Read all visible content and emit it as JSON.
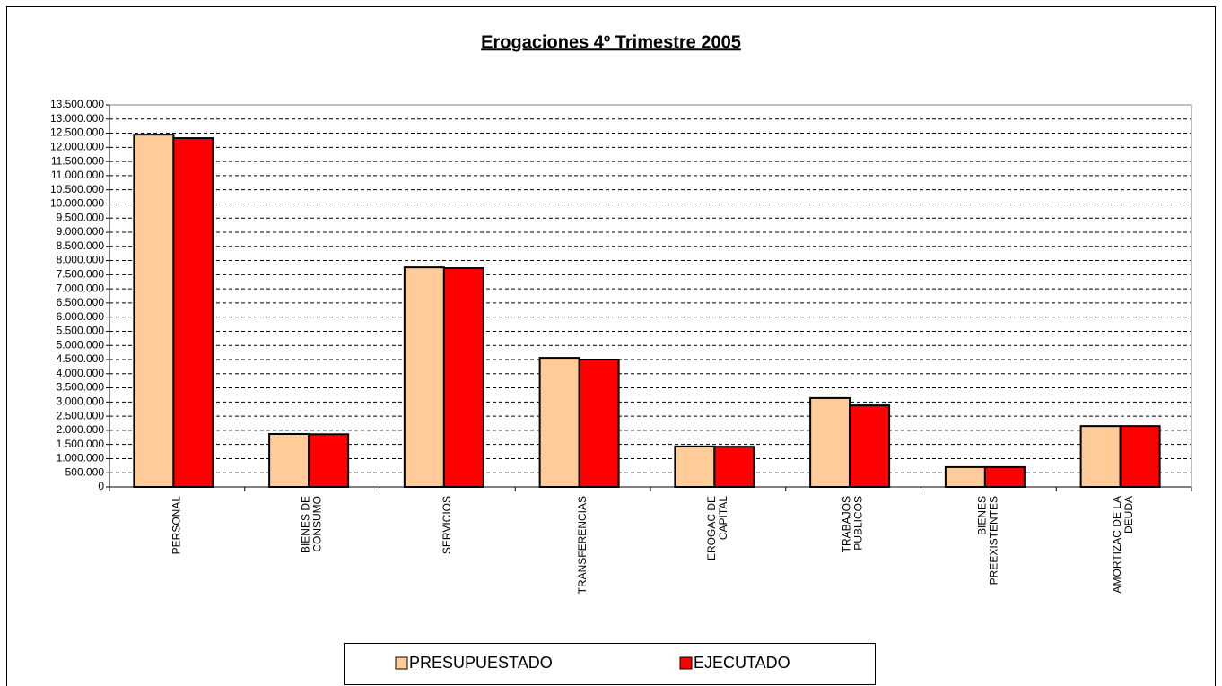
{
  "chart_data": {
    "type": "bar",
    "title": "Erogaciones 4º Trimestre 2005",
    "categories": [
      "PERSONAL",
      "BIENES DE\nCONSUMO",
      "SERVICIOS",
      "TRANSFERENCIAS",
      "EROGAC DE\nCAPITAL",
      "TRABAJOS\nPUBLICOS",
      "BIENES\nPREEXISTENTES",
      "AMORTIZAC DE LA\nDEUDA"
    ],
    "series": [
      {
        "name": "PRESUPUESTADO",
        "color": "#ffcc99",
        "values": [
          12450000,
          1870000,
          7760000,
          4560000,
          1430000,
          3140000,
          700000,
          2150000
        ]
      },
      {
        "name": "EJECUTADO",
        "color": "#ff0000",
        "values": [
          12325000,
          1860000,
          7730000,
          4500000,
          1420000,
          2880000,
          700000,
          2150000
        ]
      }
    ],
    "ylim": [
      0,
      13500000
    ],
    "yticks": [
      0,
      {
        "value": 500000,
        "label": "500.000"
      },
      {
        "value": 1000000,
        "label": "1.000.000"
      },
      {
        "value": 1500000,
        "label": "1.500.000"
      },
      {
        "value": 2000000,
        "label": "2.000.000"
      },
      {
        "value": 2500000,
        "label": "2.500.000"
      },
      {
        "value": 3000000,
        "label": "3.000.000"
      },
      {
        "value": 3500000,
        "label": "3.500.000"
      },
      {
        "value": 4000000,
        "label": "4.000.000"
      },
      {
        "value": 4500000,
        "label": "4.500.000"
      },
      {
        "value": 5000000,
        "label": "5.000.000"
      },
      {
        "value": 5500000,
        "label": "5.500.000"
      },
      {
        "value": 6000000,
        "label": "6.000.000"
      },
      {
        "value": 6500000,
        "label": "6.500.000"
      },
      {
        "value": 7000000,
        "label": "7.000.000"
      },
      {
        "value": 7500000,
        "label": "7.500.000"
      },
      {
        "value": 8000000,
        "label": "8.000.000"
      },
      {
        "value": 8500000,
        "label": "8.500.000"
      },
      {
        "value": 9000000,
        "label": "9.000.000"
      },
      {
        "value": 9500000,
        "label": "9.500.000"
      },
      {
        "value": 10000000,
        "label": "10.000.000"
      },
      {
        "value": 10500000,
        "label": "10.500.000"
      },
      {
        "value": 11000000,
        "label": "11.000.000"
      },
      {
        "value": 11500000,
        "label": "11.500.000"
      },
      {
        "value": 12000000,
        "label": "12.000.000"
      },
      {
        "value": 12500000,
        "label": "12.500.000"
      },
      {
        "value": 13000000,
        "label": "13.000.000"
      },
      {
        "value": 13500000,
        "label": "13.500.000"
      }
    ],
    "grid": true,
    "legend": "bottom"
  }
}
